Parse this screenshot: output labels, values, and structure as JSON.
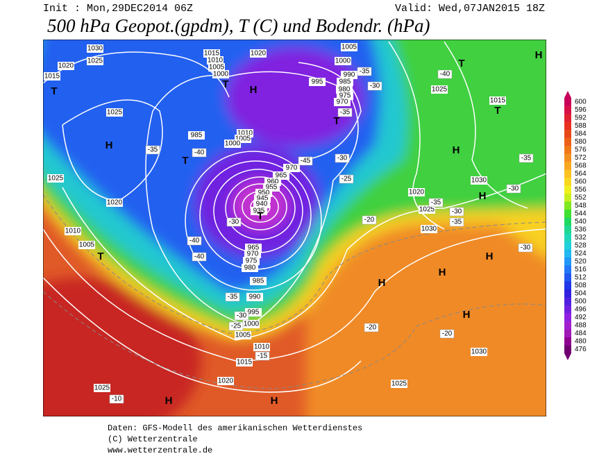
{
  "header": {
    "init": "Init : Mon,29DEC2014 06Z",
    "valid": "Valid: Wed,07JAN2015 18Z",
    "title": "500 hPa Geopot.(gpdm), T (C) und Bodendr. (hPa)"
  },
  "colorbar": {
    "labels": [
      "600",
      "596",
      "592",
      "588",
      "584",
      "580",
      "576",
      "572",
      "568",
      "564",
      "560",
      "556",
      "552",
      "548",
      "544",
      "540",
      "536",
      "532",
      "528",
      "524",
      "520",
      "516",
      "512",
      "508",
      "504",
      "500",
      "496",
      "492",
      "488",
      "484",
      "480",
      "476"
    ],
    "colors": [
      "#c8005a",
      "#d8104a",
      "#e02030",
      "#e83020",
      "#e84818",
      "#ec6018",
      "#f07818",
      "#f49020",
      "#f8a820",
      "#fcc020",
      "#f8d820",
      "#f0f020",
      "#c8f020",
      "#80e820",
      "#40e030",
      "#20d860",
      "#20d890",
      "#20d8b8",
      "#20d0d8",
      "#20b8f0",
      "#2098f8",
      "#2078f8",
      "#2058f0",
      "#2038e8",
      "#3020e0",
      "#5020e0",
      "#7020e0",
      "#9020e0",
      "#a020d0",
      "#a018b8",
      "#900090",
      "#700070"
    ]
  },
  "map_labels": {
    "isobars": [
      "1030",
      "1025",
      "1020",
      "1015",
      "1025",
      "1025",
      "1020",
      "1010",
      "1005",
      "1015",
      "1010",
      "1005",
      "1000",
      "1020",
      "985",
      "1010",
      "1005",
      "1000",
      "970",
      "965",
      "960",
      "955",
      "950",
      "945",
      "940",
      "935",
      "965",
      "970",
      "975",
      "980",
      "985",
      "990",
      "995",
      "1000",
      "1005",
      "1010",
      "1015",
      "1020",
      "1025",
      "1005",
      "1000",
      "995",
      "990",
      "985",
      "980",
      "975",
      "970",
      "1025",
      "1015",
      "1030",
      "1020",
      "1025",
      "1030",
      "1030",
      "1025"
    ],
    "centers": [
      "T",
      "H",
      "T",
      "T",
      "H",
      "T",
      "T",
      "T",
      "T",
      "H",
      "T",
      "H",
      "H",
      "H",
      "H",
      "H",
      "H",
      "H",
      "H"
    ],
    "temperatures": [
      "-35",
      "-40",
      "-45",
      "-40",
      "-40",
      "-30",
      "-35",
      "-30",
      "-25",
      "-30",
      "-25",
      "-20",
      "-35",
      "-30",
      "-35",
      "-40",
      "-35",
      "-30",
      "-30",
      "-35",
      "-30",
      "-20",
      "-20",
      "-15",
      "-10",
      "-35"
    ]
  },
  "footer": {
    "line1": "Daten: GFS-Modell des amerikanischen Wetterdienstes",
    "line2": "(C) Wetterzentrale",
    "line3": "www.wetterzentrale.de"
  }
}
